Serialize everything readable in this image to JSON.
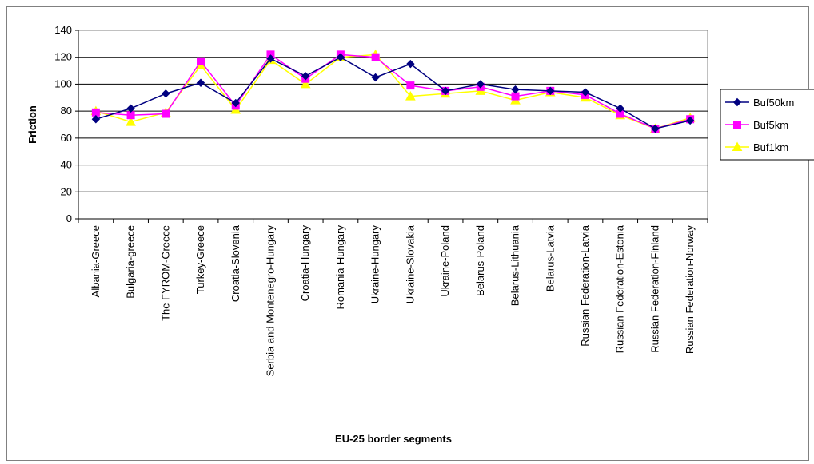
{
  "chart_data": {
    "type": "line",
    "ylabel": "Friction",
    "xlabel": "EU-25 border segments",
    "ylim": [
      0,
      140
    ],
    "yticks": [
      0,
      20,
      40,
      60,
      80,
      100,
      120,
      140
    ],
    "grid": true,
    "legend_position": "right",
    "categories": [
      "Albania-Greece",
      "Bulgaria-greece",
      "The FYROM-Greece",
      "Turkey-Greece",
      "Croatia-Slovenia",
      "Serbia and Montenegro-Hungary",
      "Croatia-Hungary",
      "Romania-Hungary",
      "Ukraine-Hungary",
      "Ukraine-Slovakia",
      "Ukraine-Poland",
      "Belarus-Poland",
      "Belarus-Lithuania",
      "Belarus-Latvia",
      "Russian Federation-Latvia",
      "Russian Federation-Estonia",
      "Russian Federation-Finland",
      "Russian Federation-Norway"
    ],
    "series": [
      {
        "name": "Buf50km",
        "color": "#000080",
        "marker": "diamond",
        "values": [
          74,
          82,
          93,
          101,
          86,
          119,
          106,
          120,
          105,
          115,
          95,
          100,
          96,
          95,
          94,
          82,
          67,
          73
        ]
      },
      {
        "name": "Buf5km",
        "color": "#ff00ff",
        "marker": "square",
        "values": [
          79,
          77,
          78,
          117,
          84,
          122,
          104,
          122,
          120,
          99,
          95,
          98,
          91,
          95,
          92,
          78,
          67,
          74
        ]
      },
      {
        "name": "Buf1km",
        "color": "#ffff00",
        "marker": "triangle",
        "values": [
          80,
          72,
          79,
          114,
          81,
          118,
          100,
          120,
          122,
          91,
          93,
          95,
          88,
          94,
          90,
          77,
          67,
          75
        ]
      }
    ]
  }
}
